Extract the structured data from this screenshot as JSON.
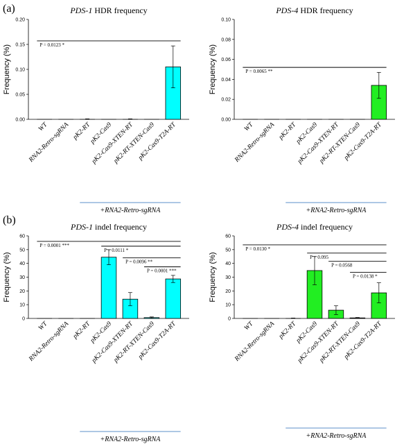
{
  "panel_labels": [
    "(a)",
    "(b)"
  ],
  "group_label": "+RNA2-Retro-sgRNA",
  "colors": {
    "cyan": "#00FFFF",
    "green": "#22EE22",
    "axis": "#000000",
    "group_line": "#5B8FC9"
  },
  "chart_data": [
    {
      "type": "bar",
      "title_italic": "PDS-1",
      "title_rest": " HDR frequency",
      "ylabel": "Frequency (%)",
      "ylim": [
        0,
        0.2
      ],
      "yticks": [
        "0.00",
        "0.05",
        "0.10",
        "0.15",
        "0.20"
      ],
      "categories": [
        "WT",
        "RNA2-Retro-sgRNA",
        "pK2-RT",
        "pK2-Cas9",
        "pK2-Cas9-XTEN-RT",
        "pK2-RT-XTEN-Cas9",
        "pK2-Cas9-T2A-RT"
      ],
      "values": [
        0,
        0,
        0,
        0,
        0,
        0,
        0.105
      ],
      "errors": [
        0,
        0,
        0.001,
        0,
        0.001,
        0,
        0.042
      ],
      "color": "cyan",
      "comparisons": [
        {
          "from": 0,
          "to": 6,
          "y": 0.157,
          "label": "P = 0.0123 *"
        }
      ]
    },
    {
      "type": "bar",
      "title_italic": "PDS-4",
      "title_rest": " HDR frequency",
      "ylabel": "Frequency (%)",
      "ylim": [
        0,
        0.1
      ],
      "yticks": [
        "0.00",
        "0.02",
        "0.04",
        "0.06",
        "0.08",
        "0.10"
      ],
      "categories": [
        "WT",
        "RNA2-Retro-sgRNA",
        "pK2-RT",
        "pK2-Cas9",
        "pK2-Cas9-XTEN-RT",
        "pK2-RT-XTEN-Cas9",
        "pK2-Cas9-T2A-RT"
      ],
      "values": [
        0,
        0,
        0,
        0,
        0,
        0,
        0.034
      ],
      "errors": [
        0,
        0,
        0,
        0,
        0,
        0,
        0.013
      ],
      "color": "green",
      "comparisons": [
        {
          "from": 0,
          "to": 6,
          "y": 0.052,
          "label": "P = 0.0065 **"
        }
      ]
    },
    {
      "type": "bar",
      "title_italic": "PDS-1",
      "title_rest": " indel frequency",
      "ylabel": "Frequency (%)",
      "ylim": [
        0,
        60
      ],
      "yticks": [
        "0",
        "10",
        "20",
        "30",
        "40",
        "50",
        "60"
      ],
      "categories": [
        "WT",
        "RNA2-Retro-sgRNA",
        "pK2-RT",
        "pK2-Cas9",
        "pK2-Cas9-XTEN-RT",
        "pK2-RT-XTEN-Cas9",
        "pK2-Cas9-T2A-RT"
      ],
      "values": [
        0,
        0,
        0,
        44.5,
        14,
        0.6,
        28.7
      ],
      "errors": [
        0,
        0,
        0,
        5.5,
        4.8,
        0.5,
        2.6
      ],
      "color": "cyan",
      "comparisons": [
        {
          "from": 0,
          "to": 6,
          "y": 56,
          "label": "P = 0.0001 ***"
        },
        {
          "from": 3,
          "to": 6,
          "y": 52.5,
          "label": "P = 0.0111 *"
        },
        {
          "from": 4,
          "to": 6,
          "y": 44,
          "label": "P = 0.0096 **"
        },
        {
          "from": 5,
          "to": 6,
          "y": 37.5,
          "label": "P = 0.0001 ***"
        }
      ]
    },
    {
      "type": "bar",
      "title_italic": "PDS-4",
      "title_rest": " indel frequency",
      "ylabel": "Frequency (%)",
      "ylim": [
        0,
        60
      ],
      "yticks": [
        "0",
        "10",
        "20",
        "30",
        "40",
        "50",
        "60"
      ],
      "categories": [
        "WT",
        "RNA2-Retro-sgRNA",
        "pK2-RT",
        "pK2-Cas9",
        "pK2-Cas9-XTEN-RT",
        "pK2-RT-XTEN-Cas9",
        "pK2-Cas9-T2A-RT"
      ],
      "values": [
        0,
        0,
        0,
        34.8,
        6,
        0.4,
        18.6
      ],
      "errors": [
        0,
        0,
        0.3,
        10.3,
        3.2,
        0.3,
        7.3
      ],
      "color": "green",
      "comparisons": [
        {
          "from": 0,
          "to": 6,
          "y": 53.5,
          "label": "P = 0.0130 *"
        },
        {
          "from": 3,
          "to": 6,
          "y": 47.5,
          "label": "P = 0.095"
        },
        {
          "from": 4,
          "to": 6,
          "y": 41.5,
          "label": "P = 0.0568"
        },
        {
          "from": 5,
          "to": 6,
          "y": 33.5,
          "label": "P = 0.0138 *"
        }
      ]
    }
  ]
}
